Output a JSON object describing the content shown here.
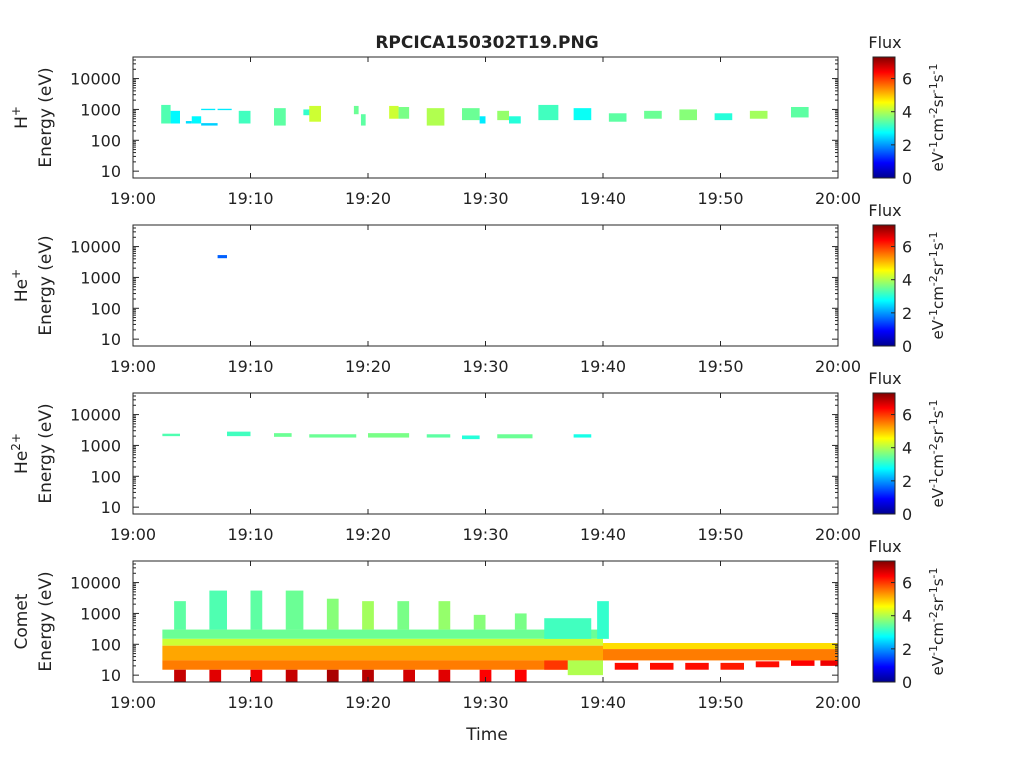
{
  "figure": {
    "title": "RPCICA150302T19.PNG",
    "xlabel": "Time"
  },
  "colormap": [
    "#00008f",
    "#0000ff",
    "#0080ff",
    "#00ffff",
    "#80ff80",
    "#ffff00",
    "#ff8000",
    "#ff0000",
    "#800000"
  ],
  "chart_data": [
    {
      "type": "heatmap",
      "panel": "H+",
      "ylabel_species": "H",
      "ylabel_species_sup": "+",
      "ylabel": "Energy (eV)",
      "x_ticks": [
        "19:00",
        "19:10",
        "19:20",
        "19:30",
        "19:40",
        "19:50",
        "20:00"
      ],
      "xlim": [
        "19:00",
        "20:00"
      ],
      "y_scale": "log",
      "y_ticks": [
        "10",
        "100",
        "1000",
        "10000"
      ],
      "ylim": [
        6,
        50000
      ],
      "colorbar": {
        "title": "Flux",
        "label": "eV-1cm-2sr-1s-1",
        "ticks": [
          "0",
          "2",
          "4",
          "6"
        ],
        "range": [
          0,
          7.3
        ]
      },
      "cells": [
        {
          "t0": "19:02.4",
          "t1": "19:03.2",
          "e0": 350,
          "e1": 1400,
          "flux": 3.3
        },
        {
          "t0": "19:03.2",
          "t1": "19:04",
          "e0": 350,
          "e1": 900,
          "flux": 2.7
        },
        {
          "t0": "19:04.5",
          "t1": "19:05",
          "e0": 350,
          "e1": 420,
          "flux": 2.5
        },
        {
          "t0": "19:05",
          "t1": "19:05.8",
          "e0": 350,
          "e1": 600,
          "flux": 2.7
        },
        {
          "t0": "19:05.8",
          "t1": "19:07.2",
          "e0": 300,
          "e1": 360,
          "flux": 2.4
        },
        {
          "t0": "19:05.8",
          "t1": "19:07",
          "e0": 950,
          "e1": 1050,
          "flux": 2.6
        },
        {
          "t0": "19:07.2",
          "t1": "19:08.4",
          "e0": 950,
          "e1": 1050,
          "flux": 2.6
        },
        {
          "t0": "19:09",
          "t1": "19:10",
          "e0": 350,
          "e1": 900,
          "flux": 3.2
        },
        {
          "t0": "19:12",
          "t1": "19:13",
          "e0": 300,
          "e1": 1100,
          "flux": 3.4
        },
        {
          "t0": "19:14.5",
          "t1": "19:15.5",
          "e0": 650,
          "e1": 1000,
          "flux": 3.1
        },
        {
          "t0": "19:15",
          "t1": "19:16",
          "e0": 400,
          "e1": 1300,
          "flux": 4.2
        },
        {
          "t0": "19:18.8",
          "t1": "19:19.2",
          "e0": 700,
          "e1": 1300,
          "flux": 3.5
        },
        {
          "t0": "19:19.4",
          "t1": "19:19.8",
          "e0": 300,
          "e1": 700,
          "flux": 3.4
        },
        {
          "t0": "19:21.8",
          "t1": "19:22.6",
          "e0": 500,
          "e1": 1300,
          "flux": 4.2
        },
        {
          "t0": "19:22.6",
          "t1": "19:23.5",
          "e0": 500,
          "e1": 1200,
          "flux": 3.6
        },
        {
          "t0": "19:25",
          "t1": "19:26.5",
          "e0": 300,
          "e1": 1100,
          "flux": 4.0
        },
        {
          "t0": "19:28",
          "t1": "19:29.5",
          "e0": 450,
          "e1": 1100,
          "flux": 3.5
        },
        {
          "t0": "19:29.5",
          "t1": "19:30",
          "e0": 350,
          "e1": 600,
          "flux": 2.6
        },
        {
          "t0": "19:31",
          "t1": "19:32",
          "e0": 450,
          "e1": 900,
          "flux": 3.8
        },
        {
          "t0": "19:32",
          "t1": "19:33",
          "e0": 350,
          "e1": 600,
          "flux": 3.0
        },
        {
          "t0": "19:34.5",
          "t1": "19:36.2",
          "e0": 450,
          "e1": 1400,
          "flux": 3.2
        },
        {
          "t0": "19:37.5",
          "t1": "19:39",
          "e0": 450,
          "e1": 1100,
          "flux": 2.8
        },
        {
          "t0": "19:40.5",
          "t1": "19:42",
          "e0": 400,
          "e1": 750,
          "flux": 3.4
        },
        {
          "t0": "19:43.5",
          "t1": "19:45",
          "e0": 500,
          "e1": 900,
          "flux": 3.5
        },
        {
          "t0": "19:46.5",
          "t1": "19:48",
          "e0": 450,
          "e1": 1000,
          "flux": 3.7
        },
        {
          "t0": "19:49.5",
          "t1": "19:51",
          "e0": 450,
          "e1": 750,
          "flux": 3.0
        },
        {
          "t0": "19:52.5",
          "t1": "19:54",
          "e0": 500,
          "e1": 900,
          "flux": 3.9
        },
        {
          "t0": "19:56",
          "t1": "19:57.5",
          "e0": 550,
          "e1": 1200,
          "flux": 3.4
        }
      ]
    },
    {
      "type": "heatmap",
      "panel": "He+",
      "ylabel_species": "He",
      "ylabel_species_sup": "+",
      "ylabel": "Energy (eV)",
      "x_ticks": [
        "19:00",
        "19:10",
        "19:20",
        "19:30",
        "19:40",
        "19:50",
        "20:00"
      ],
      "xlim": [
        "19:00",
        "20:00"
      ],
      "y_scale": "log",
      "y_ticks": [
        "10",
        "100",
        "1000",
        "10000"
      ],
      "ylim": [
        6,
        50000
      ],
      "colorbar": {
        "title": "Flux",
        "label": "eV-1cm-2sr-1s-1",
        "ticks": [
          "0",
          "2",
          "4",
          "6"
        ],
        "range": [
          0,
          7.3
        ]
      },
      "cells": [
        {
          "t0": "19:07.2",
          "t1": "19:08",
          "e0": 4200,
          "e1": 5300,
          "flux": 1.6
        }
      ]
    },
    {
      "type": "heatmap",
      "panel": "He2+",
      "ylabel_species": "He",
      "ylabel_species_sup": "2+",
      "ylabel": "Energy (eV)",
      "x_ticks": [
        "19:00",
        "19:10",
        "19:20",
        "19:30",
        "19:40",
        "19:50",
        "20:00"
      ],
      "xlim": [
        "19:00",
        "20:00"
      ],
      "y_scale": "log",
      "y_ticks": [
        "10",
        "100",
        "1000",
        "10000"
      ],
      "ylim": [
        6,
        50000
      ],
      "colorbar": {
        "title": "Flux",
        "label": "eV-1cm-2sr-1s-1",
        "ticks": [
          "0",
          "2",
          "4",
          "6"
        ],
        "range": [
          0,
          7.3
        ]
      },
      "cells": [
        {
          "t0": "19:02.5",
          "t1": "19:04",
          "e0": 2000,
          "e1": 2400,
          "flux": 3.3
        },
        {
          "t0": "19:08",
          "t1": "19:10",
          "e0": 2000,
          "e1": 2800,
          "flux": 3.2
        },
        {
          "t0": "19:12",
          "t1": "19:13.5",
          "e0": 1900,
          "e1": 2500,
          "flux": 3.5
        },
        {
          "t0": "19:15",
          "t1": "19:19",
          "e0": 1800,
          "e1": 2300,
          "flux": 3.5
        },
        {
          "t0": "19:20",
          "t1": "19:23.5",
          "e0": 1800,
          "e1": 2500,
          "flux": 3.6
        },
        {
          "t0": "19:25",
          "t1": "19:27",
          "e0": 1800,
          "e1": 2300,
          "flux": 3.4
        },
        {
          "t0": "19:28",
          "t1": "19:29.5",
          "e0": 1600,
          "e1": 2100,
          "flux": 3.0
        },
        {
          "t0": "19:31",
          "t1": "19:34",
          "e0": 1700,
          "e1": 2300,
          "flux": 3.5
        },
        {
          "t0": "19:37.5",
          "t1": "19:39",
          "e0": 1800,
          "e1": 2300,
          "flux": 2.9
        }
      ]
    },
    {
      "type": "heatmap",
      "panel": "Comet",
      "ylabel_species": "Comet",
      "ylabel_species_sup": "",
      "ylabel": "Energy (eV)",
      "x_ticks": [
        "19:00",
        "19:10",
        "19:20",
        "19:30",
        "19:40",
        "19:50",
        "20:00"
      ],
      "xlim": [
        "19:00",
        "20:00"
      ],
      "y_scale": "log",
      "y_ticks": [
        "10",
        "100",
        "1000",
        "10000"
      ],
      "ylim": [
        6,
        50000
      ],
      "colorbar": {
        "title": "Flux",
        "label": "eV-1cm-2sr-1s-1",
        "ticks": [
          "0",
          "2",
          "4",
          "6"
        ],
        "range": [
          0,
          7.3
        ]
      },
      "cells": [
        {
          "t0": "19:02.5",
          "t1": "19:40",
          "e0": 150,
          "e1": 300,
          "flux": 3.5
        },
        {
          "t0": "19:02.5",
          "t1": "19:40",
          "e0": 90,
          "e1": 150,
          "flux": 4.2
        },
        {
          "t0": "19:02.5",
          "t1": "19:40",
          "e0": 30,
          "e1": 90,
          "flux": 5.2
        },
        {
          "t0": "19:02.5",
          "t1": "19:40",
          "e0": 15,
          "e1": 30,
          "flux": 5.5
        },
        {
          "t0": "19:03.5",
          "t1": "19:04.5",
          "e0": 300,
          "e1": 2500,
          "flux": 3.4
        },
        {
          "t0": "19:06.5",
          "t1": "19:08",
          "e0": 300,
          "e1": 5500,
          "flux": 3.3
        },
        {
          "t0": "19:10",
          "t1": "19:11",
          "e0": 300,
          "e1": 5500,
          "flux": 3.4
        },
        {
          "t0": "19:13",
          "t1": "19:14.5",
          "e0": 300,
          "e1": 5500,
          "flux": 3.5
        },
        {
          "t0": "19:16.5",
          "t1": "19:17.5",
          "e0": 300,
          "e1": 3000,
          "flux": 3.7
        },
        {
          "t0": "19:19.5",
          "t1": "19:20.5",
          "e0": 300,
          "e1": 2500,
          "flux": 3.9
        },
        {
          "t0": "19:22.5",
          "t1": "19:23.5",
          "e0": 300,
          "e1": 2500,
          "flux": 3.6
        },
        {
          "t0": "19:26",
          "t1": "19:27",
          "e0": 300,
          "e1": 2500,
          "flux": 3.8
        },
        {
          "t0": "19:29",
          "t1": "19:30",
          "e0": 300,
          "e1": 900,
          "flux": 3.7
        },
        {
          "t0": "19:32.5",
          "t1": "19:33.5",
          "e0": 300,
          "e1": 1000,
          "flux": 3.6
        },
        {
          "t0": "19:35",
          "t1": "19:39",
          "e0": 150,
          "e1": 700,
          "flux": 3.2
        },
        {
          "t0": "19:39.5",
          "t1": "19:40.5",
          "e0": 150,
          "e1": 2500,
          "flux": 3.1
        },
        {
          "t0": "19:03.5",
          "t1": "19:04.5",
          "e0": 6,
          "e1": 15,
          "flux": 6.8
        },
        {
          "t0": "19:06.5",
          "t1": "19:07.5",
          "e0": 6,
          "e1": 15,
          "flux": 6.6
        },
        {
          "t0": "19:10",
          "t1": "19:11",
          "e0": 6,
          "e1": 15,
          "flux": 6.5
        },
        {
          "t0": "19:13",
          "t1": "19:14",
          "e0": 6,
          "e1": 15,
          "flux": 6.8
        },
        {
          "t0": "19:16.5",
          "t1": "19:17.5",
          "e0": 6,
          "e1": 15,
          "flux": 7.0
        },
        {
          "t0": "19:19.5",
          "t1": "19:20.5",
          "e0": 6,
          "e1": 15,
          "flux": 6.9
        },
        {
          "t0": "19:23",
          "t1": "19:24",
          "e0": 6,
          "e1": 15,
          "flux": 6.7
        },
        {
          "t0": "19:26",
          "t1": "19:27",
          "e0": 6,
          "e1": 15,
          "flux": 6.6
        },
        {
          "t0": "19:29.5",
          "t1": "19:30.5",
          "e0": 6,
          "e1": 15,
          "flux": 6.4
        },
        {
          "t0": "19:32.5",
          "t1": "19:33.5",
          "e0": 6,
          "e1": 15,
          "flux": 6.4
        },
        {
          "t0": "19:35",
          "t1": "19:37",
          "e0": 15,
          "e1": 30,
          "flux": 6.0
        },
        {
          "t0": "19:37",
          "t1": "19:40",
          "e0": 10,
          "e1": 30,
          "flux": 4.0
        },
        {
          "t0": "19:40",
          "t1": "20:00",
          "e0": 70,
          "e1": 110,
          "flux": 4.8
        },
        {
          "t0": "19:40",
          "t1": "20:00",
          "e0": 30,
          "e1": 70,
          "flux": 5.5
        },
        {
          "t0": "19:41",
          "t1": "19:43",
          "e0": 15,
          "e1": 25,
          "flux": 6.3
        },
        {
          "t0": "19:44",
          "t1": "19:46",
          "e0": 15,
          "e1": 25,
          "flux": 6.3
        },
        {
          "t0": "19:47",
          "t1": "19:49",
          "e0": 15,
          "e1": 25,
          "flux": 6.3
        },
        {
          "t0": "19:50",
          "t1": "19:52",
          "e0": 15,
          "e1": 25,
          "flux": 6.2
        },
        {
          "t0": "19:53",
          "t1": "19:55",
          "e0": 18,
          "e1": 28,
          "flux": 6.3
        },
        {
          "t0": "19:56",
          "t1": "19:58",
          "e0": 20,
          "e1": 30,
          "flux": 6.4
        },
        {
          "t0": "19:58.5",
          "t1": "20:00",
          "e0": 20,
          "e1": 30,
          "flux": 6.5
        }
      ]
    }
  ]
}
